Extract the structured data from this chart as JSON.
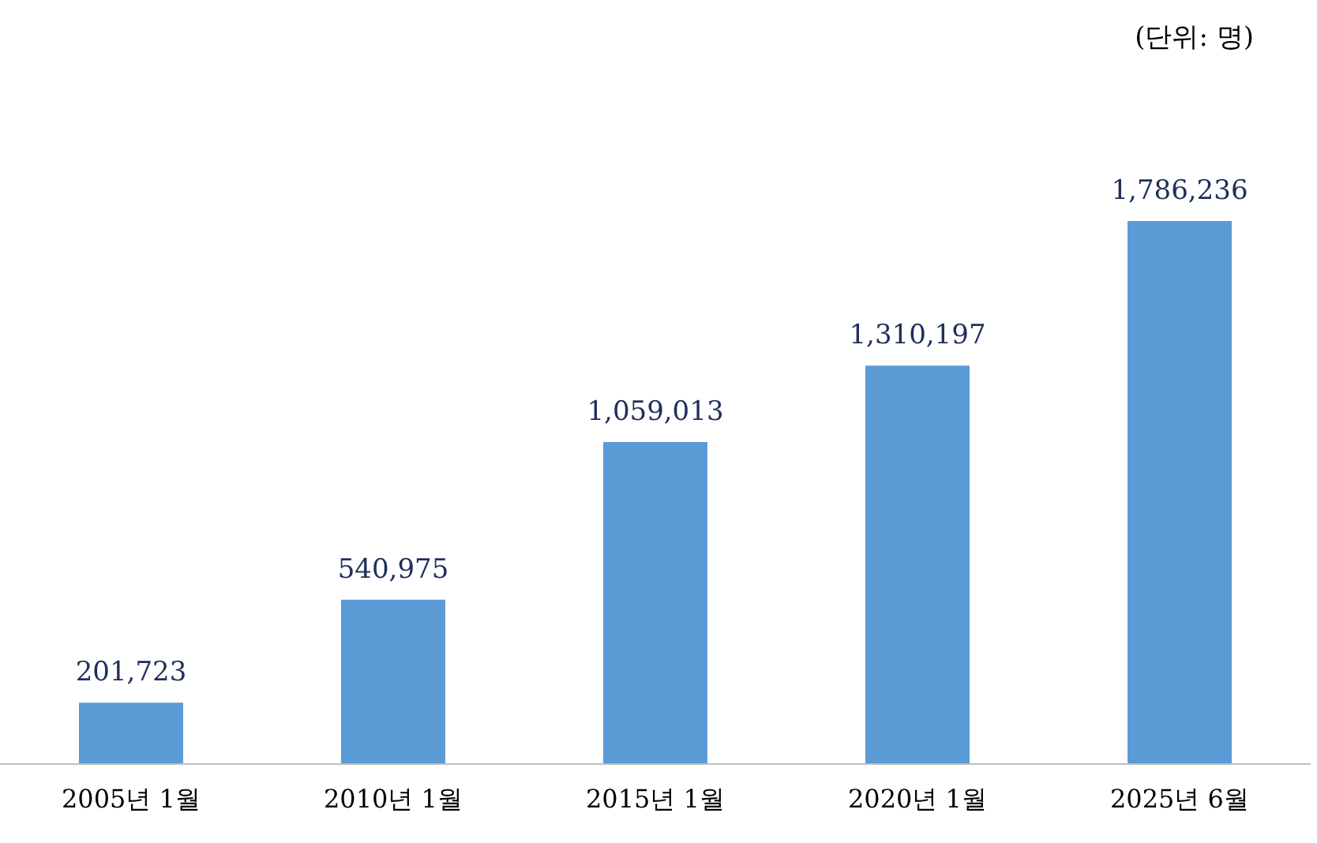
{
  "chart_data": {
    "type": "bar",
    "annotations": [
      "(단위: 명)"
    ],
    "categories": [
      "2005년 1월",
      "2010년 1월",
      "2015년 1월",
      "2020년 1월",
      "2025년 6월"
    ],
    "values": [
      201723,
      540975,
      1059013,
      1310197,
      1786236
    ],
    "value_labels": [
      "201,723",
      "540,975",
      "1,059,013",
      "1,310,197",
      "1,786,236"
    ],
    "color": "#5b9bd5"
  }
}
